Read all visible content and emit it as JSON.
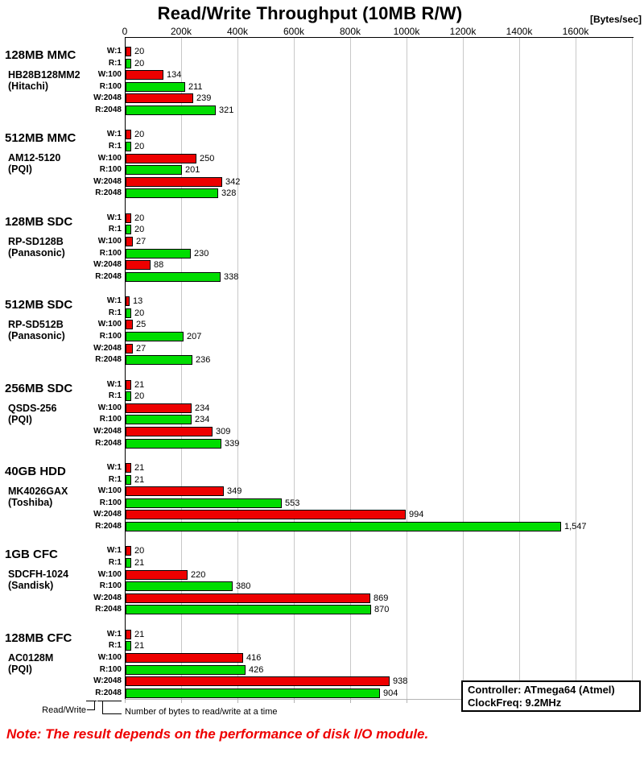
{
  "title": "Read/Write Throughput (10MB R/W)",
  "unit_label": "[Bytes/sec]",
  "chart_data": {
    "type": "bar",
    "orientation": "horizontal",
    "title": "Read/Write Throughput (10MB R/W)",
    "ylabel": "",
    "xlabel": "[Bytes/sec]",
    "x_axis": {
      "tick_labels": [
        "0",
        "200k",
        "400k",
        "600k",
        "800k",
        "1000k",
        "1200k",
        "1400k",
        "1600k"
      ],
      "tick_step": 200000,
      "axis_end": 1800000,
      "grid": true
    },
    "bar_labels": [
      "W:1",
      "R:1",
      "W:100",
      "R:100",
      "W:2048",
      "R:2048"
    ],
    "colors": {
      "write_bar": "#ee0000",
      "read_bar": "#00dd00",
      "grid_line": "#c8c8c8",
      "zero_line": "#000000"
    },
    "values_unit": "kBytes/sec",
    "groups": [
      {
        "name": "128MB MMC",
        "model": "HB28B128MM2",
        "maker": "(Hitachi)",
        "values": [
          20,
          20,
          134,
          211,
          239,
          321
        ],
        "value_labels": [
          "20",
          "20",
          "134",
          "211",
          "239",
          "321"
        ]
      },
      {
        "name": "512MB MMC",
        "model": "AM12-5120",
        "maker": "(PQI)",
        "values": [
          20,
          20,
          250,
          201,
          342,
          328
        ],
        "value_labels": [
          "20",
          "20",
          "250",
          "201",
          "342",
          "328"
        ]
      },
      {
        "name": "128MB SDC",
        "model": "RP-SD128B",
        "maker": "(Panasonic)",
        "values": [
          20,
          20,
          27,
          230,
          88,
          338
        ],
        "value_labels": [
          "20",
          "20",
          "27",
          "230",
          "88",
          "338"
        ]
      },
      {
        "name": "512MB SDC",
        "model": "RP-SD512B",
        "maker": "(Panasonic)",
        "values": [
          13,
          20,
          25,
          207,
          27,
          236
        ],
        "value_labels": [
          "13",
          "20",
          "25",
          "207",
          "27",
          "236"
        ]
      },
      {
        "name": "256MB SDC",
        "model": "QSDS-256",
        "maker": "(PQI)",
        "values": [
          21,
          20,
          234,
          234,
          309,
          339
        ],
        "value_labels": [
          "21",
          "20",
          "234",
          "234",
          "309",
          "339"
        ]
      },
      {
        "name": "40GB HDD",
        "model": "MK4026GAX",
        "maker": "(Toshiba)",
        "values": [
          21,
          21,
          349,
          553,
          994,
          1547
        ],
        "value_labels": [
          "21",
          "21",
          "349",
          "553",
          "994",
          "1,547"
        ]
      },
      {
        "name": "1GB CFC",
        "model": "SDCFH-1024",
        "maker": "(Sandisk)",
        "values": [
          20,
          21,
          220,
          380,
          869,
          870
        ],
        "value_labels": [
          "20",
          "21",
          "220",
          "380",
          "869",
          "870"
        ]
      },
      {
        "name": "128MB CFC",
        "model": "AC0128M",
        "maker": "(PQI)",
        "values": [
          21,
          21,
          416,
          426,
          938,
          904
        ],
        "value_labels": [
          "21",
          "21",
          "416",
          "426",
          "938",
          "904"
        ]
      }
    ]
  },
  "legend_box": {
    "controller": "Controller: ATmega64 (Atmel)",
    "clock": "ClockFreq: 9.2MHz"
  },
  "axis_annotations": {
    "read_write": "Read/Write",
    "bytes_count": "Number of bytes to read/write at a time"
  },
  "note": "Note: The result depends on the performance of disk I/O module."
}
